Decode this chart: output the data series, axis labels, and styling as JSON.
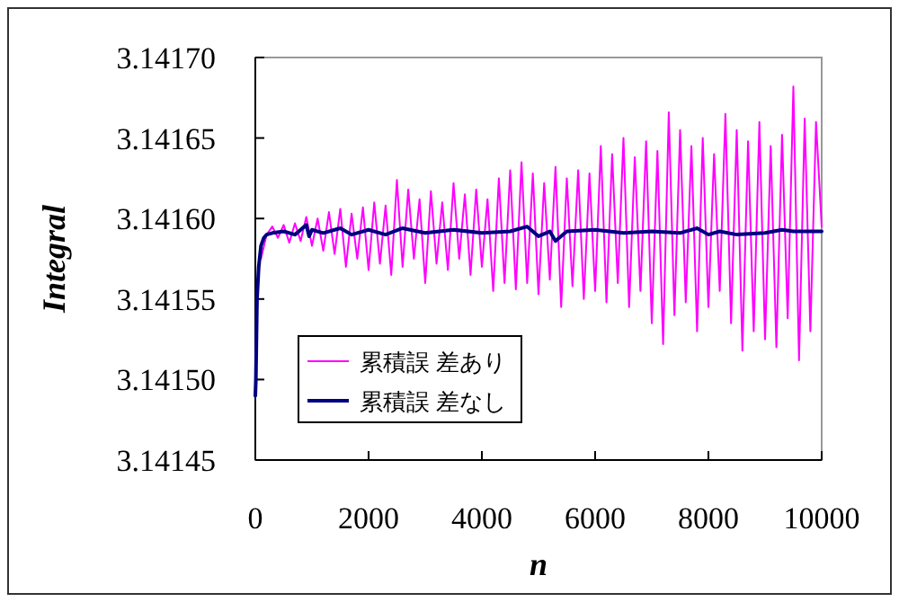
{
  "chart_data": {
    "type": "line",
    "xlabel": "n",
    "ylabel": "Integral",
    "xlim": [
      0,
      10000
    ],
    "ylim": [
      3.14145,
      3.1417
    ],
    "xticks": [
      0,
      2000,
      4000,
      6000,
      8000,
      10000
    ],
    "yticks": [
      {
        "value": 3.14145,
        "label": "3.14145"
      },
      {
        "value": 3.1415,
        "label": "3.14150"
      },
      {
        "value": 3.14155,
        "label": "3.14155"
      },
      {
        "value": 3.1416,
        "label": "3.14160"
      },
      {
        "value": 3.14165,
        "label": "3.14165"
      },
      {
        "value": 3.1417,
        "label": "3.14170"
      }
    ],
    "grid": false,
    "legend": "bottom left",
    "marker": "none",
    "line_style": "solid",
    "series": [
      {
        "name": "累積誤 差あり",
        "color": "#ff00ff",
        "x": [
          100,
          200,
          300,
          400,
          500,
          600,
          700,
          800,
          900,
          1000,
          1100,
          1200,
          1300,
          1400,
          1500,
          1600,
          1700,
          1800,
          1900,
          2000,
          2100,
          2200,
          2300,
          2400,
          2500,
          2600,
          2700,
          2800,
          2900,
          3000,
          3100,
          3200,
          3300,
          3400,
          3500,
          3600,
          3700,
          3800,
          3900,
          4000,
          4100,
          4200,
          4300,
          4400,
          4500,
          4600,
          4700,
          4800,
          4900,
          5000,
          5100,
          5200,
          5300,
          5400,
          5500,
          5600,
          5700,
          5800,
          5900,
          6000,
          6100,
          6200,
          6300,
          6400,
          6500,
          6600,
          6700,
          6800,
          6900,
          7000,
          7100,
          7200,
          7300,
          7400,
          7500,
          7600,
          7700,
          7800,
          7900,
          8000,
          8100,
          8200,
          8300,
          8400,
          8500,
          8600,
          8700,
          8800,
          8900,
          9000,
          9100,
          9200,
          9300,
          9400,
          9500,
          9600,
          9700,
          9800,
          9900,
          10000
        ],
        "values": [
          3.141575,
          3.14159,
          3.141595,
          3.141588,
          3.141596,
          3.141585,
          3.141597,
          3.141586,
          3.141601,
          3.141583,
          3.1416,
          3.14158,
          3.141604,
          3.141578,
          3.141606,
          3.14157,
          3.141603,
          3.141575,
          3.141607,
          3.141568,
          3.14161,
          3.141572,
          3.141608,
          3.141565,
          3.141624,
          3.14157,
          3.141618,
          3.141575,
          3.141612,
          3.14156,
          3.141617,
          3.141572,
          3.14161,
          3.141568,
          3.141622,
          3.141575,
          3.141615,
          3.141565,
          3.141618,
          3.14157,
          3.141612,
          3.141555,
          3.141625,
          3.14156,
          3.14163,
          3.141556,
          3.141635,
          3.14156,
          3.141628,
          3.141553,
          3.141622,
          3.141562,
          3.141632,
          3.141545,
          3.141625,
          3.141558,
          3.14163,
          3.14155,
          3.141628,
          3.141555,
          3.141645,
          3.141548,
          3.14164,
          3.14156,
          3.14165,
          3.141545,
          3.141638,
          3.141555,
          3.141648,
          3.141535,
          3.141642,
          3.141522,
          3.141666,
          3.14154,
          3.141655,
          3.141548,
          3.141645,
          3.14153,
          3.14165,
          3.141545,
          3.14164,
          3.141555,
          3.141665,
          3.141535,
          3.141655,
          3.141518,
          3.141648,
          3.14153,
          3.14166,
          3.141525,
          3.141645,
          3.14152,
          3.141652,
          3.141538,
          3.141682,
          3.141512,
          3.141662,
          3.14153,
          3.14166,
          3.141595
        ]
      },
      {
        "name": "累積誤 差なし",
        "color": "#000080",
        "x": [
          0,
          10,
          30,
          60,
          100,
          150,
          200,
          300,
          500,
          700,
          900,
          950,
          1000,
          1200,
          1500,
          1700,
          2000,
          2300,
          2600,
          3000,
          3500,
          4000,
          4500,
          4800,
          5000,
          5200,
          5300,
          5500,
          6000,
          6500,
          7000,
          7500,
          7800,
          8000,
          8200,
          8500,
          9000,
          9300,
          9500,
          10000
        ],
        "values": [
          3.14149,
          3.1415,
          3.14155,
          3.14157,
          3.141583,
          3.141588,
          3.14159,
          3.141591,
          3.141592,
          3.14159,
          3.141596,
          3.141589,
          3.141593,
          3.141591,
          3.141594,
          3.14159,
          3.141593,
          3.14159,
          3.141594,
          3.141591,
          3.141593,
          3.141591,
          3.141592,
          3.141595,
          3.141589,
          3.141592,
          3.141586,
          3.141592,
          3.141593,
          3.141591,
          3.141592,
          3.141591,
          3.141594,
          3.14159,
          3.141592,
          3.14159,
          3.141591,
          3.141593,
          3.141592,
          3.141592
        ]
      }
    ]
  }
}
